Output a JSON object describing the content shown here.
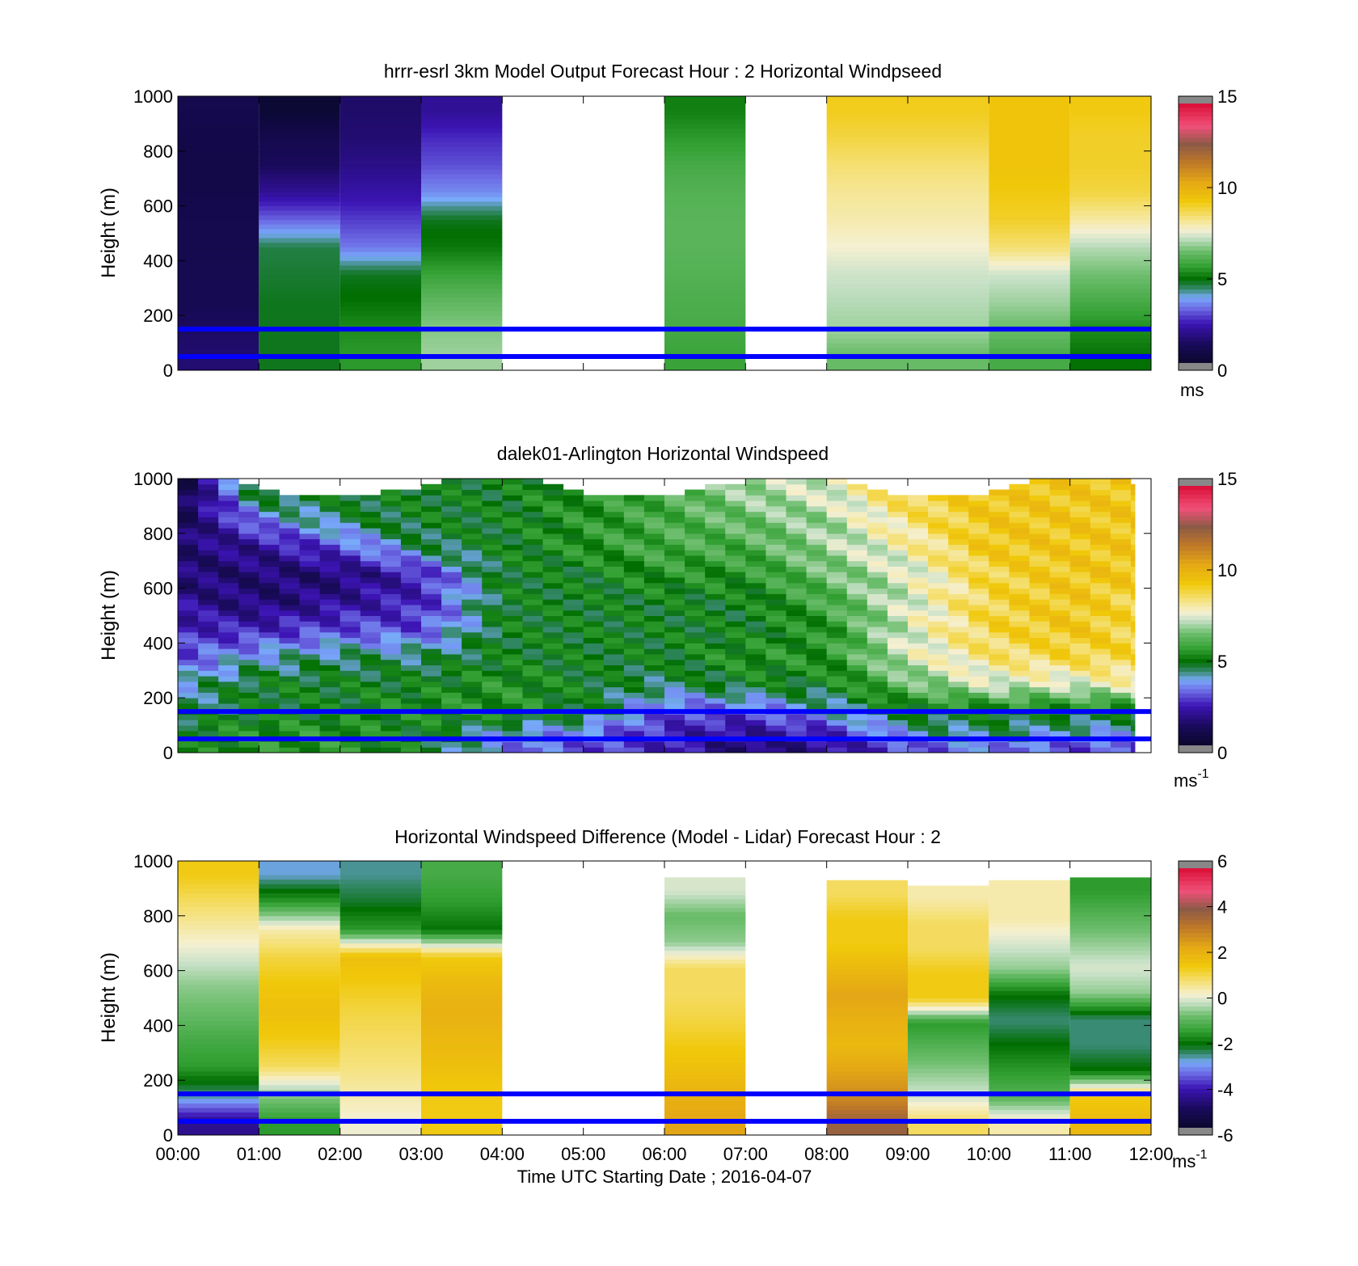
{
  "figure": {
    "xlabel": "Time UTC  Starting Date ; 2016-04-07",
    "x_tick_labels": [
      "00:00",
      "01:00",
      "02:00",
      "03:00",
      "04:00",
      "05:00",
      "06:00",
      "07:00",
      "08:00",
      "09:00",
      "10:00",
      "11:00",
      "12:00"
    ]
  },
  "chart_data": [
    {
      "type": "heatmap",
      "title": "hrrr-esrl 3km Model Output   Forecast Hour : 2 Horizontal Windpseed",
      "ylabel": "Height (m)",
      "xlim": [
        0,
        12
      ],
      "ylim": [
        0,
        1000
      ],
      "y_ticks": [
        0,
        200,
        400,
        600,
        800,
        1000
      ],
      "colorbar": {
        "min": 0,
        "max": 15,
        "ticks": [
          0,
          5,
          10,
          15
        ],
        "unit": "ms"
      },
      "reference_lines_m": [
        50,
        150
      ],
      "reference_line_color": "#0000ff",
      "columns": [
        {
          "start": 0,
          "end": 1,
          "top": 1000,
          "levels": [
            1.5,
            1.3,
            1.0,
            1.0,
            0.9,
            0.9,
            0.8,
            0.8,
            0.8,
            0.9
          ]
        },
        {
          "start": 1,
          "end": 2,
          "top": 1000,
          "levels": [
            4.8,
            4.8,
            4.8,
            4.7,
            4.6,
            3.2,
            2.0,
            1.2,
            0.9,
            0.3
          ]
        },
        {
          "start": 2,
          "end": 3,
          "top": 1000,
          "levels": [
            5.6,
            5.4,
            5.0,
            4.8,
            3.4,
            2.8,
            2.2,
            1.8,
            1.5,
            1.4
          ]
        },
        {
          "start": 3,
          "end": 4,
          "top": 1000,
          "levels": [
            7.0,
            6.8,
            6.4,
            5.8,
            5.1,
            4.8,
            3.6,
            3.0,
            2.6,
            2.0
          ]
        },
        {
          "start": 6,
          "end": 7,
          "top": 1000,
          "levels": [
            5.8,
            6.0,
            6.1,
            6.2,
            6.3,
            6.3,
            6.2,
            6.0,
            5.6,
            5.2
          ]
        },
        {
          "start": 8,
          "end": 9,
          "top": 1000,
          "levels": [
            6.5,
            7.0,
            7.2,
            7.4,
            7.8,
            8.1,
            8.3,
            8.6,
            9.0,
            9.3
          ]
        },
        {
          "start": 9,
          "end": 10,
          "top": 1000,
          "levels": [
            6.5,
            7.0,
            7.2,
            7.4,
            7.8,
            8.1,
            8.3,
            8.6,
            9.0,
            9.3
          ]
        },
        {
          "start": 10,
          "end": 11,
          "top": 1000,
          "levels": [
            6.0,
            6.5,
            7.0,
            7.4,
            8.6,
            9.2,
            9.4,
            9.6,
            9.6,
            9.6
          ]
        },
        {
          "start": 11,
          "end": 12,
          "top": 1000,
          "levels": [
            5.0,
            5.4,
            6.0,
            6.6,
            7.2,
            8.2,
            9.0,
            9.2,
            9.2,
            9.4
          ]
        }
      ]
    },
    {
      "type": "heatmap",
      "title": "dalek01-Arlington  Horizontal Windspeed",
      "ylabel": "Height (m)",
      "xlim": [
        0,
        12
      ],
      "ylim": [
        0,
        1000
      ],
      "y_ticks": [
        0,
        200,
        400,
        600,
        800,
        1000
      ],
      "colorbar": {
        "min": 0,
        "max": 15,
        "ticks": [
          0,
          5,
          10,
          15
        ],
        "unit": "ms",
        "unit_exp": "-1"
      },
      "reference_lines_m": [
        50,
        150
      ],
      "reference_line_color": "#0000ff",
      "x_end": 11.8,
      "column_width_h": 0.25,
      "profile_heights_m": [
        25,
        75,
        150,
        250,
        350,
        450,
        550,
        650,
        750,
        850,
        950
      ],
      "keyframes": [
        {
          "t": 0.0,
          "levels": [
            5.0,
            5.0,
            4.5,
            4.0,
            3.0,
            2.5,
            2.0,
            1.5,
            1.5,
            1.0,
            0.5
          ]
        },
        {
          "t": 1.0,
          "levels": [
            5.5,
            5.5,
            5.0,
            5.0,
            4.0,
            2.5,
            1.5,
            1.5,
            2.0,
            3.5,
            5.0
          ]
        },
        {
          "t": 2.0,
          "levels": [
            5.5,
            5.5,
            5.0,
            5.0,
            4.5,
            3.0,
            2.0,
            1.5,
            3.0,
            4.5,
            5.0
          ]
        },
        {
          "t": 3.0,
          "levels": [
            5.0,
            5.0,
            5.5,
            5.0,
            4.5,
            3.0,
            2.5,
            2.5,
            4.5,
            5.0,
            5.0
          ]
        },
        {
          "t": 4.0,
          "levels": [
            3.5,
            4.0,
            5.5,
            5.5,
            5.0,
            5.0,
            5.0,
            5.0,
            5.0,
            5.0,
            5.0
          ]
        },
        {
          "t": 5.0,
          "levels": [
            3.0,
            3.5,
            5.0,
            5.0,
            5.0,
            5.0,
            5.0,
            5.0,
            5.5,
            5.5,
            5.5
          ]
        },
        {
          "t": 6.0,
          "levels": [
            2.5,
            2.5,
            3.0,
            4.5,
            5.0,
            5.0,
            5.0,
            5.5,
            6.0,
            6.0,
            6.0
          ]
        },
        {
          "t": 7.0,
          "levels": [
            1.5,
            2.0,
            3.0,
            5.0,
            5.5,
            5.0,
            5.0,
            5.5,
            6.0,
            6.5,
            7.0
          ]
        },
        {
          "t": 8.0,
          "levels": [
            2.0,
            2.5,
            4.0,
            5.0,
            5.5,
            5.5,
            6.0,
            6.5,
            7.0,
            7.0,
            7.5
          ]
        },
        {
          "t": 9.0,
          "levels": [
            3.0,
            4.0,
            5.0,
            6.5,
            7.5,
            7.5,
            7.5,
            7.5,
            8.0,
            8.5,
            9.0
          ]
        },
        {
          "t": 10.0,
          "levels": [
            3.5,
            4.5,
            5.0,
            7.5,
            8.5,
            9.0,
            9.0,
            9.0,
            9.5,
            9.5,
            9.5
          ]
        },
        {
          "t": 11.0,
          "levels": [
            3.0,
            4.0,
            5.0,
            7.5,
            9.0,
            9.5,
            9.5,
            9.5,
            9.5,
            9.5,
            9.5
          ]
        },
        {
          "t": 11.8,
          "levels": [
            3.0,
            4.0,
            5.0,
            8.0,
            9.0,
            9.0,
            9.0,
            9.5,
            9.5,
            9.5,
            9.5
          ]
        }
      ]
    },
    {
      "type": "heatmap",
      "title": "Horizontal Windspeed Difference (Model - Lidar) Forecast Hour : 2",
      "ylabel": "Height (m)",
      "xlabel": "Time UTC  Starting Date ; 2016-04-07",
      "xlim": [
        0,
        12
      ],
      "ylim": [
        0,
        1000
      ],
      "y_ticks": [
        0,
        200,
        400,
        600,
        800,
        1000
      ],
      "colorbar": {
        "min": -6,
        "max": 6,
        "ticks": [
          -6,
          -4,
          -2,
          0,
          2,
          4,
          6
        ],
        "unit": "ms",
        "unit_exp": "-1"
      },
      "reference_lines_m": [
        50,
        150
      ],
      "reference_line_color": "#0000ff",
      "columns": [
        {
          "start": 0,
          "end": 1,
          "top": 1000,
          "levels": [
            -4.5,
            -2.5,
            -1.5,
            -1.2,
            -0.8,
            -0.5,
            0.0,
            0.5,
            1.0,
            1.5
          ]
        },
        {
          "start": 1,
          "end": 2,
          "top": 1000,
          "levels": [
            -1.5,
            -0.5,
            1.0,
            1.5,
            1.8,
            1.6,
            1.2,
            0.5,
            -1.5,
            -2.8
          ]
        },
        {
          "start": 2,
          "end": 3,
          "top": 1000,
          "levels": [
            0.2,
            0.5,
            0.8,
            1.0,
            1.2,
            1.5,
            1.8,
            -1.5,
            -2.2,
            -2.6
          ]
        },
        {
          "start": 3,
          "end": 4,
          "top": 1000,
          "levels": [
            1.5,
            1.5,
            1.8,
            2.0,
            2.2,
            2.0,
            1.5,
            -2.0,
            -1.5,
            -1.2
          ]
        },
        {
          "start": 6,
          "end": 7,
          "top": 940,
          "levels": [
            2.5,
            2.2,
            1.8,
            1.5,
            1.2,
            1.0,
            1.0,
            -0.5,
            -0.8,
            0.0
          ]
        },
        {
          "start": 8,
          "end": 9,
          "top": 930,
          "levels": [
            4.0,
            3.0,
            2.5,
            2.0,
            2.2,
            2.5,
            2.0,
            1.5,
            1.5,
            1.0
          ]
        },
        {
          "start": 9,
          "end": 10,
          "top": 910,
          "levels": [
            1.0,
            0.0,
            -0.5,
            -1.0,
            -1.5,
            1.5,
            1.5,
            1.0,
            1.0,
            0.5
          ]
        },
        {
          "start": 10,
          "end": 11,
          "top": 930,
          "levels": [
            0.5,
            -1.0,
            -1.5,
            -2.0,
            -2.5,
            -2.0,
            -0.5,
            0.0,
            0.5,
            0.5
          ]
        },
        {
          "start": 11,
          "end": 12,
          "top": 940,
          "levels": [
            2.0,
            1.5,
            -2.0,
            -2.5,
            -2.5,
            -0.5,
            0.0,
            -0.5,
            -1.0,
            -1.5
          ]
        }
      ]
    }
  ]
}
